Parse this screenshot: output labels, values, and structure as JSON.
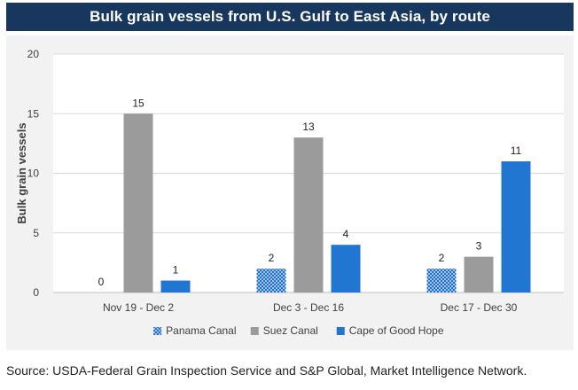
{
  "chart_data": {
    "type": "bar",
    "title": "Bulk grain vessels from U.S. Gulf to East Asia, by route",
    "xlabel": "",
    "ylabel": "Bulk grain vessels",
    "ylim": [
      0,
      20
    ],
    "yticks": [
      0,
      5,
      10,
      15,
      20
    ],
    "grid": true,
    "legend_position": "bottom",
    "categories": [
      "Nov 19 - Dec 2",
      "Dec 3 - Dec 16",
      "Dec 17 - Dec 30"
    ],
    "series": [
      {
        "name": "Panama Canal",
        "values": [
          0,
          2,
          2
        ],
        "color": "#1f6fd0",
        "pattern": "dotted"
      },
      {
        "name": "Suez Canal",
        "values": [
          15,
          13,
          3
        ],
        "color": "#9b9b9b",
        "pattern": "solid"
      },
      {
        "name": "Cape of Good Hope",
        "values": [
          1,
          4,
          11
        ],
        "color": "#2176d2",
        "pattern": "solid"
      }
    ]
  },
  "source_note": "Source: USDA-Federal Grain Inspection Service and S&P Global, Market Intelligence Network."
}
